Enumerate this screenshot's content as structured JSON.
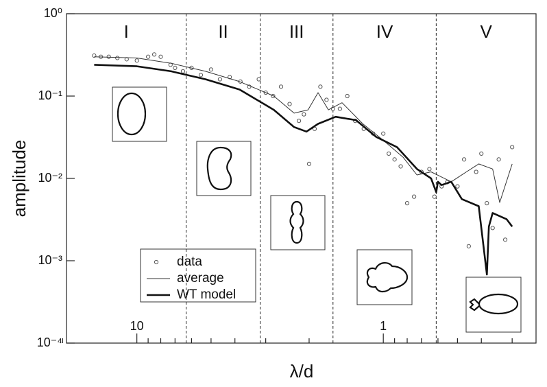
{
  "chart_data": {
    "type": "scatter-line",
    "x_label": "λ/d",
    "y_label": "amplitude",
    "xscale": "log",
    "yscale": "log",
    "xlim": [
      19.3,
      0.24
    ],
    "ylim": [
      0.0001,
      1
    ],
    "xticks": [
      10,
      1
    ],
    "xminorticks": [
      20,
      9,
      8,
      7,
      6,
      5,
      4,
      3,
      2,
      0.9,
      0.8,
      0.7,
      0.6,
      0.5,
      0.4,
      0.3
    ],
    "yticks": [
      {
        "value": 0.0001,
        "label": "10⁻⁴"
      },
      {
        "value": 0.001,
        "label": "10⁻³"
      },
      {
        "value": 0.01,
        "label": "10⁻²"
      },
      {
        "value": 0.1,
        "label": "10⁻¹"
      },
      {
        "value": 1,
        "label": "10⁰"
      }
    ],
    "boundaries": [
      6.31,
      3.16,
      1.6,
      0.61
    ],
    "regions": [
      "I",
      "II",
      "III",
      "IV",
      "V"
    ],
    "series": [
      {
        "name": "data",
        "kind": "points",
        "color": "#555555",
        "x": [
          14.9,
          14,
          13,
          12,
          11,
          10,
          9,
          8.5,
          8,
          7.3,
          7,
          6.5,
          6,
          5.5,
          5,
          4.6,
          4.2,
          3.8,
          3.5,
          3.2,
          3,
          2.8,
          2.6,
          2.4,
          2.2,
          2.1,
          2.0,
          1.9,
          1.8,
          1.7,
          1.6,
          1.5,
          1.4,
          1.3,
          1.2,
          1.1,
          1.0,
          0.95,
          0.9,
          0.85,
          0.8,
          0.75,
          0.7,
          0.65,
          0.62,
          0.58,
          0.55,
          0.5,
          0.47,
          0.45,
          0.42,
          0.4,
          0.38,
          0.36,
          0.34,
          0.32,
          0.3
        ],
        "values": [
          0.31,
          0.3,
          0.3,
          0.29,
          0.28,
          0.27,
          0.3,
          0.32,
          0.3,
          0.24,
          0.22,
          0.2,
          0.22,
          0.18,
          0.21,
          0.16,
          0.17,
          0.15,
          0.13,
          0.16,
          0.11,
          0.1,
          0.13,
          0.08,
          0.05,
          0.06,
          0.015,
          0.04,
          0.13,
          0.09,
          0.07,
          0.07,
          0.1,
          0.05,
          0.04,
          0.035,
          0.035,
          0.02,
          0.017,
          0.014,
          0.005,
          0.006,
          0.012,
          0.013,
          0.006,
          0.008,
          0.009,
          0.008,
          0.017,
          0.0015,
          0.012,
          0.02,
          0.005,
          0.0025,
          0.017,
          0.0018,
          0.024
        ]
      },
      {
        "name": "average",
        "kind": "line",
        "color": "#333333",
        "width": 1,
        "x": [
          14.9,
          10,
          7.26,
          5.27,
          3.83,
          2.78,
          2.3,
          2.02,
          1.84,
          1.67,
          1.47,
          1.21,
          1.0,
          0.83,
          0.73,
          0.64,
          0.53,
          0.46,
          0.41,
          0.36,
          0.337,
          0.3
        ],
        "values": [
          0.3,
          0.29,
          0.25,
          0.2,
          0.15,
          0.1,
          0.062,
          0.068,
          0.11,
          0.068,
          0.083,
          0.046,
          0.029,
          0.018,
          0.011,
          0.012,
          0.0091,
          0.012,
          0.015,
          0.013,
          0.0051,
          0.015
        ]
      },
      {
        "name": "WT model",
        "kind": "line",
        "color": "#111111",
        "width": 2.6,
        "x": [
          14.9,
          10,
          7.26,
          5.27,
          3.83,
          2.78,
          2.3,
          2.05,
          1.84,
          1.56,
          1.29,
          1.07,
          0.88,
          0.73,
          0.64,
          0.61,
          0.6,
          0.58,
          0.53,
          0.48,
          0.41,
          0.38,
          0.373,
          0.36,
          0.316,
          0.3
        ],
        "values": [
          0.24,
          0.23,
          0.2,
          0.16,
          0.12,
          0.068,
          0.042,
          0.037,
          0.046,
          0.056,
          0.051,
          0.032,
          0.024,
          0.013,
          0.01,
          0.0068,
          0.0091,
          0.0083,
          0.0091,
          0.0056,
          0.0046,
          0.00068,
          0.0026,
          0.0038,
          0.0032,
          0.0026
        ]
      }
    ]
  }
}
